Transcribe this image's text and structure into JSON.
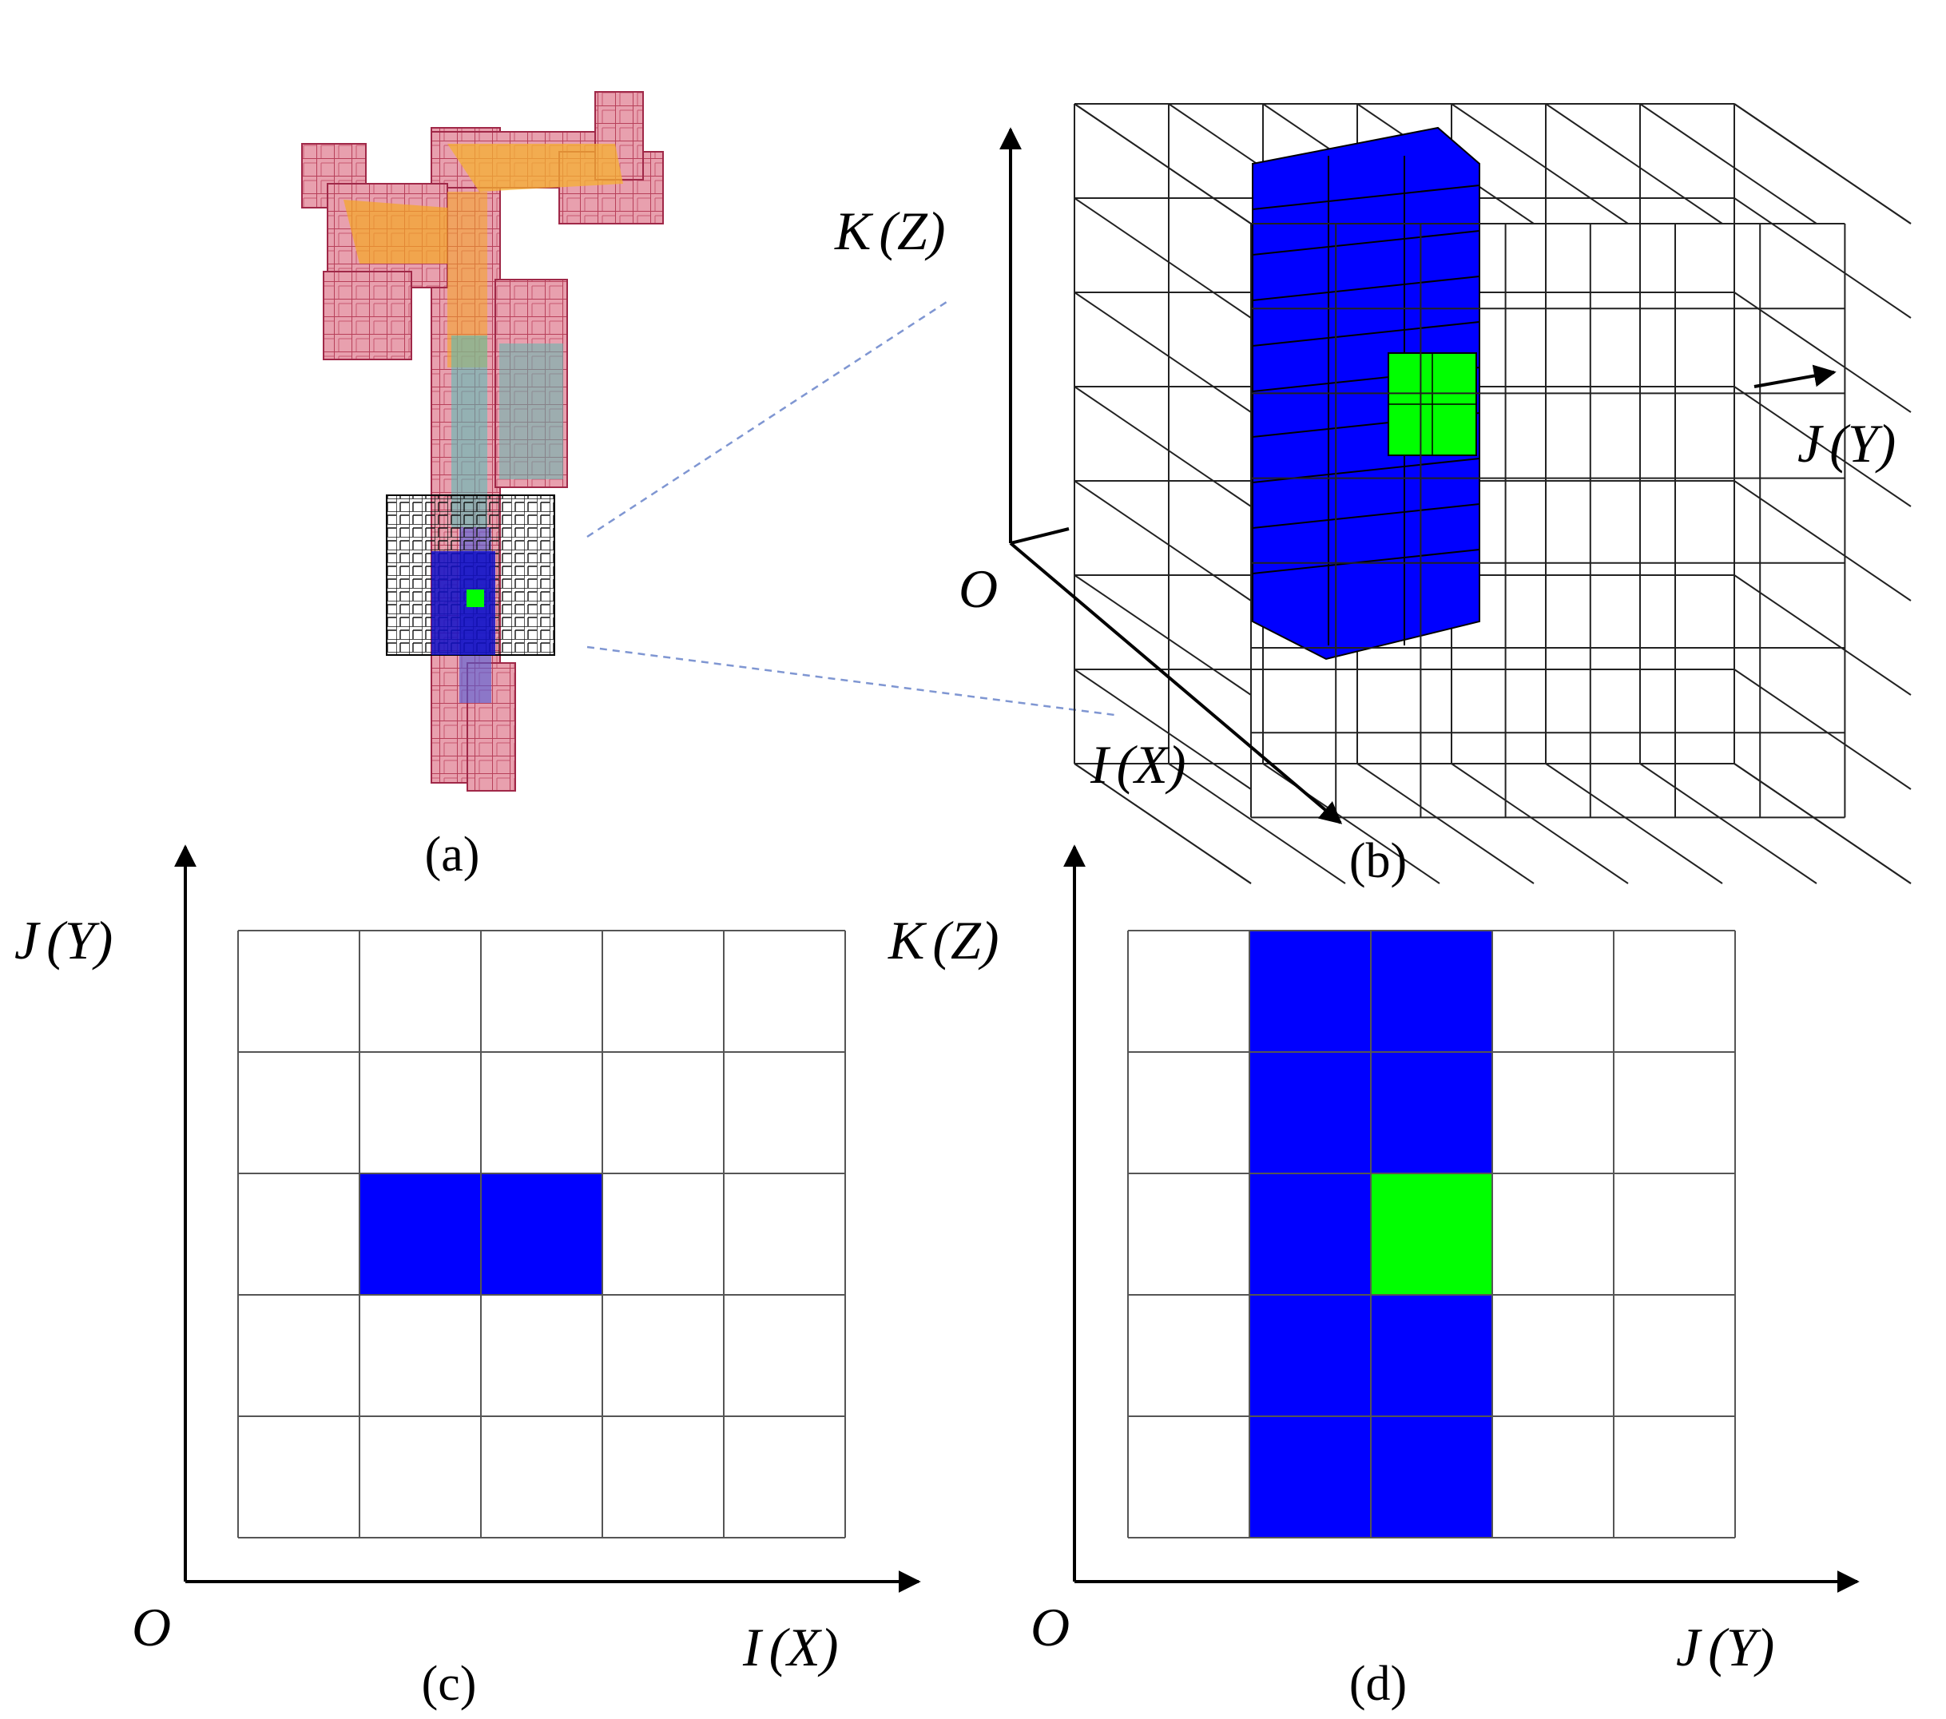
{
  "colors": {
    "blue": "#0000FF",
    "green": "#00FF00",
    "pink": "#E79AA8",
    "pink_edge": "#C0304C",
    "orange": "#F5A623",
    "teal": "#3FB8C8",
    "grid": "#555555",
    "leader": "#7F96D2"
  },
  "panels": {
    "a": {
      "caption": "(a)"
    },
    "b": {
      "caption": "(b)",
      "axis_k": {
        "var": "K",
        "paren": "(Z)"
      },
      "axis_j": {
        "var": "J",
        "paren": "(Y)"
      },
      "axis_i": {
        "var": "I",
        "paren": "(X)"
      },
      "origin": "O",
      "grid": {
        "cols": 7,
        "rows": 7
      }
    },
    "c": {
      "caption": "(c)",
      "axis_y": {
        "var": "J",
        "paren": "(Y)"
      },
      "axis_x": {
        "var": "I",
        "paren": "(X)"
      },
      "origin": "O",
      "grid": {
        "cols": 5,
        "rows": 5
      },
      "cells": [
        {
          "col": 1,
          "row": 2,
          "fill": "blue"
        },
        {
          "col": 2,
          "row": 2,
          "fill": "blue"
        }
      ]
    },
    "d": {
      "caption": "(d)",
      "axis_y": {
        "var": "K",
        "paren": "(Z)"
      },
      "axis_x": {
        "var": "J",
        "paren": "(Y)"
      },
      "origin": "O",
      "grid": {
        "cols": 5,
        "rows": 5
      },
      "cells": [
        {
          "col": 1,
          "row": 0,
          "fill": "blue"
        },
        {
          "col": 2,
          "row": 0,
          "fill": "blue"
        },
        {
          "col": 1,
          "row": 1,
          "fill": "blue"
        },
        {
          "col": 2,
          "row": 1,
          "fill": "blue"
        },
        {
          "col": 1,
          "row": 2,
          "fill": "blue"
        },
        {
          "col": 2,
          "row": 2,
          "fill": "green"
        },
        {
          "col": 1,
          "row": 3,
          "fill": "blue"
        },
        {
          "col": 2,
          "row": 3,
          "fill": "blue"
        },
        {
          "col": 1,
          "row": 4,
          "fill": "blue"
        },
        {
          "col": 2,
          "row": 4,
          "fill": "blue"
        }
      ]
    }
  }
}
